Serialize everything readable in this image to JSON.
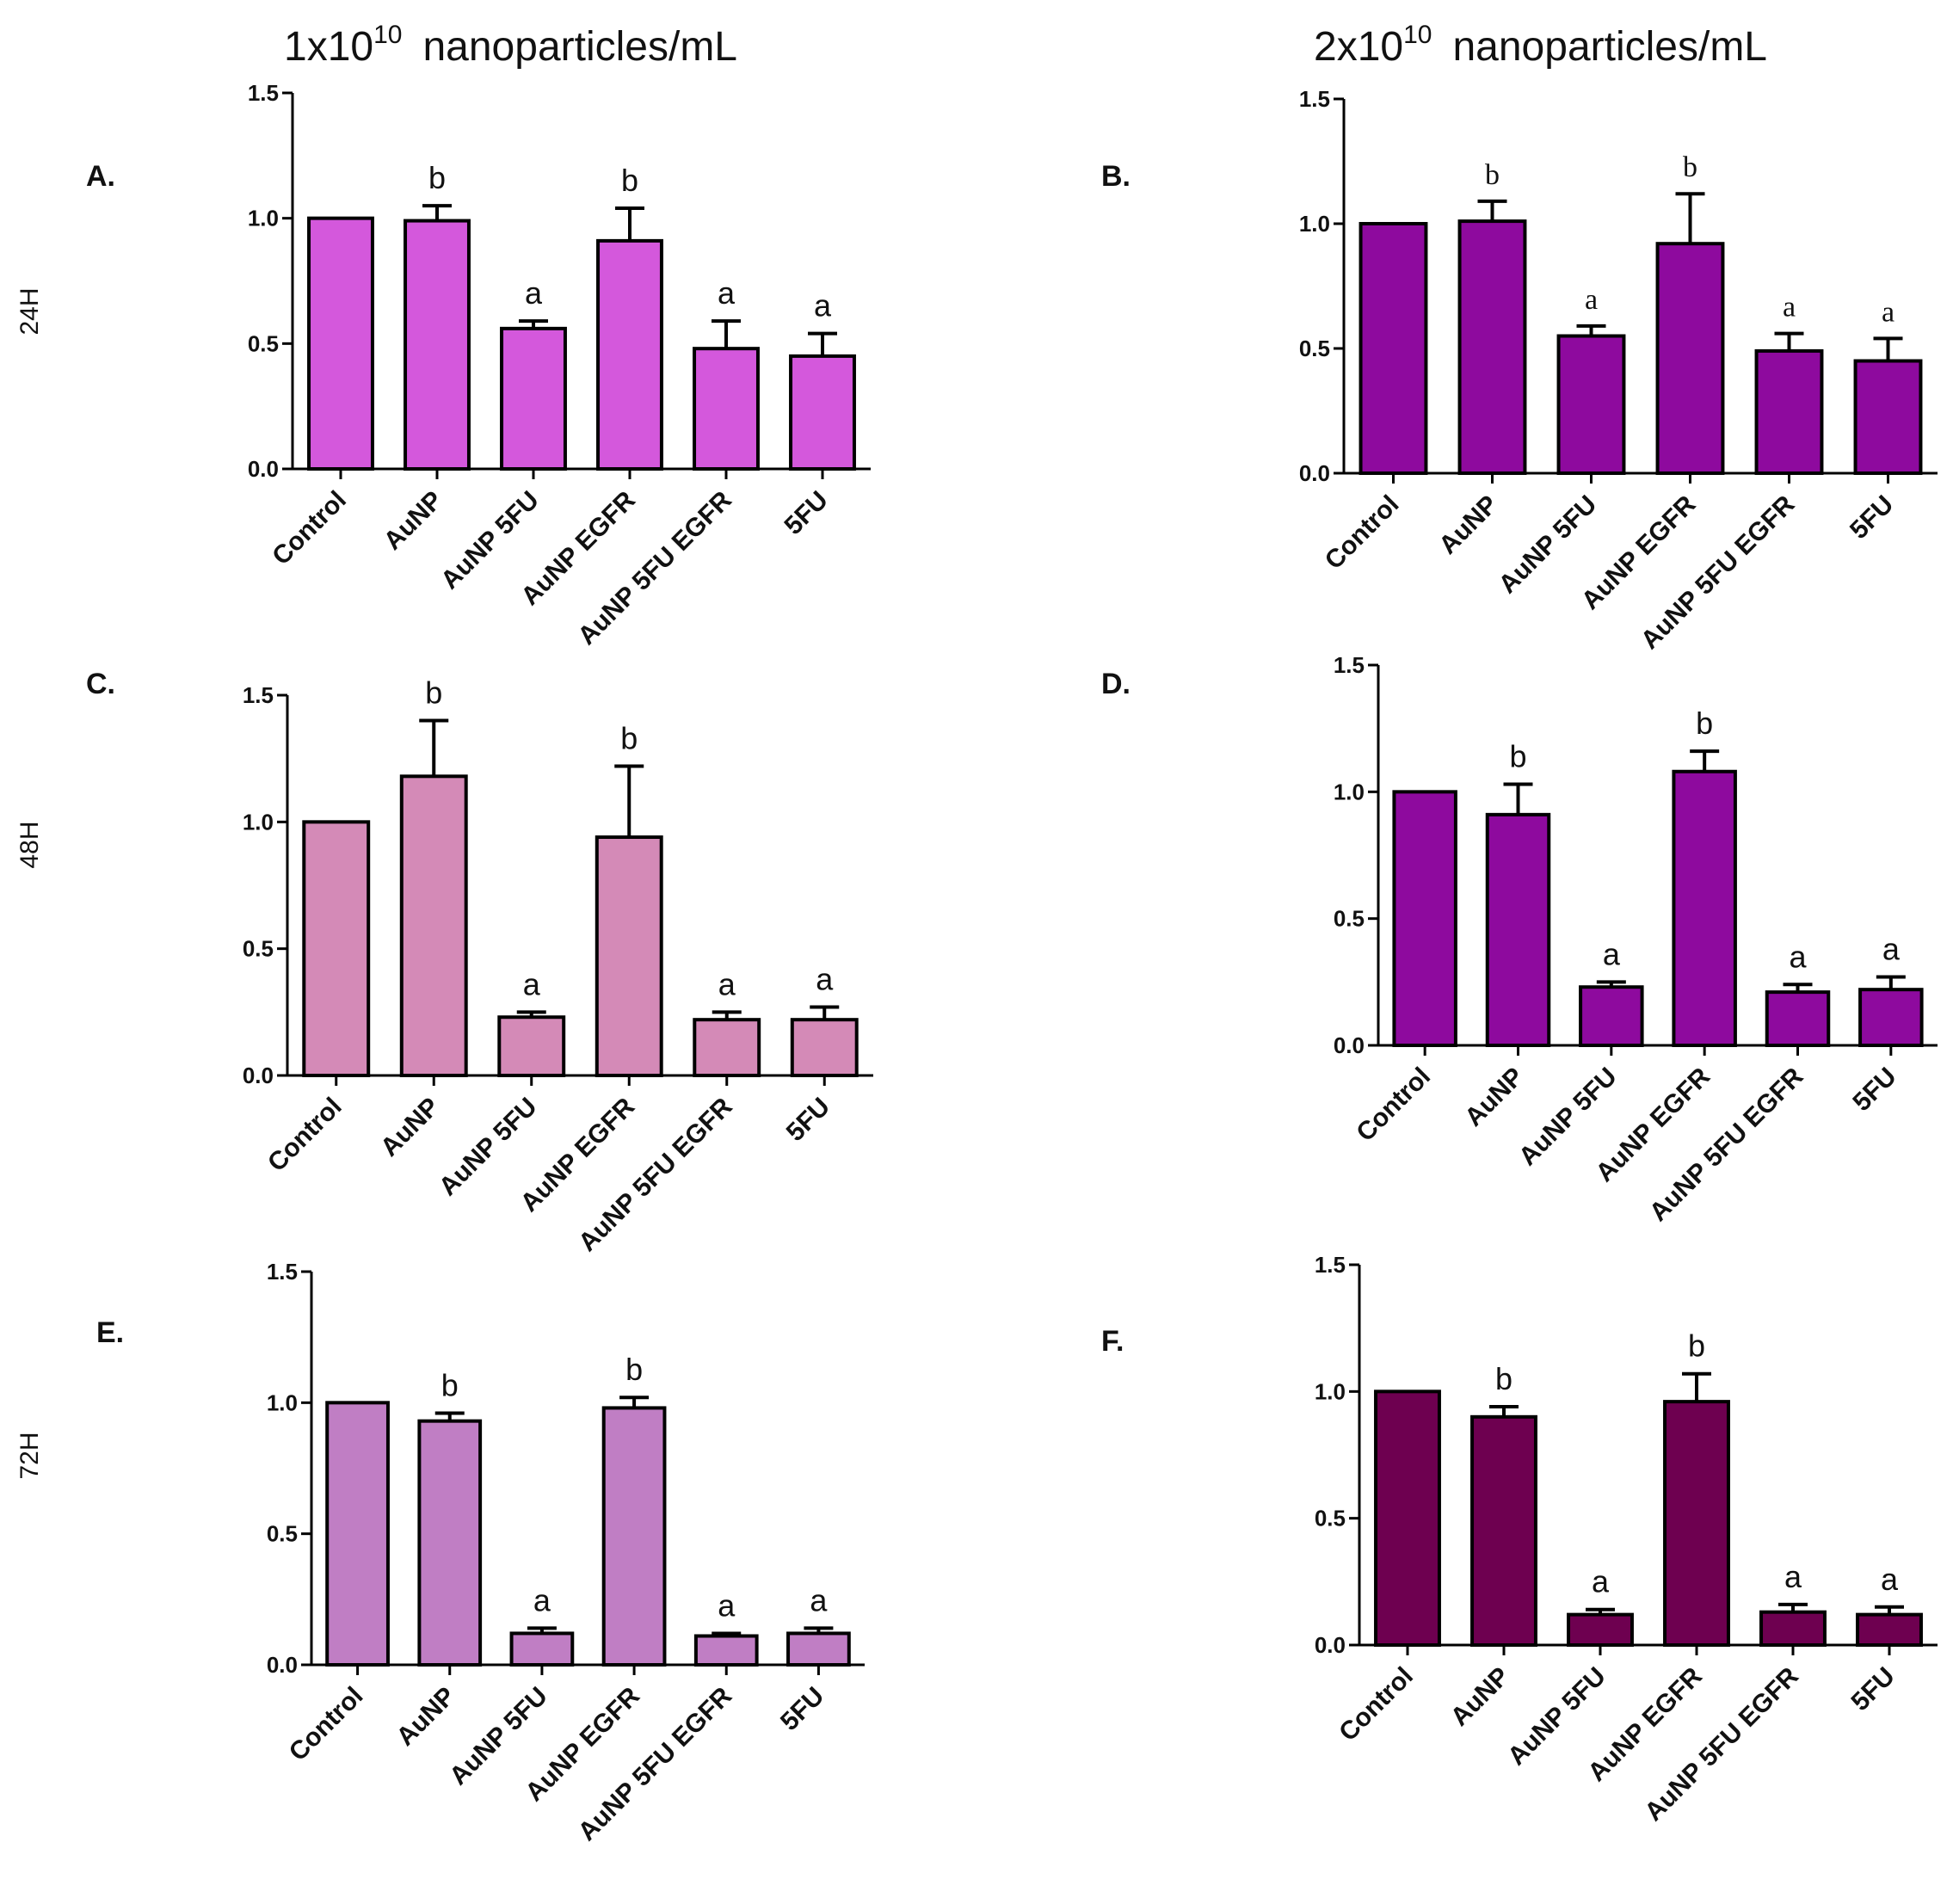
{
  "columns": [
    {
      "base": "1x10",
      "exp": "10",
      "unit": "nanoparticles/mL"
    },
    {
      "base": "2x10",
      "exp": "10",
      "unit": "nanoparticles/mL"
    }
  ],
  "rows": [
    "24H",
    "48H",
    "72H"
  ],
  "chart_data": [
    {
      "id": "A",
      "label": "A.",
      "type": "bar",
      "color": "#D458DC",
      "sig_font": "sans",
      "categories": [
        "Control",
        "AuNP",
        "AuNP 5FU",
        "AuNP EGFR",
        "AuNP 5FU EGFR",
        "5FU"
      ],
      "values": [
        1.0,
        0.99,
        0.56,
        0.91,
        0.48,
        0.45
      ],
      "errors": [
        0.0,
        0.06,
        0.03,
        0.13,
        0.11,
        0.09
      ],
      "significance": [
        "",
        "b",
        "a",
        "b",
        "a",
        "a"
      ],
      "ylim": [
        0,
        1.5
      ],
      "yticks": [
        "0.0",
        "0.5",
        "1.0",
        "1.5"
      ],
      "xlabel": "",
      "ylabel": ""
    },
    {
      "id": "B",
      "label": "B.",
      "type": "bar",
      "color": "#8E0A9E",
      "sig_font": "serif",
      "categories": [
        "Control",
        "AuNP",
        "AuNP 5FU",
        "AuNP EGFR",
        "AuNP 5FU EGFR",
        "5FU"
      ],
      "values": [
        1.0,
        1.01,
        0.55,
        0.92,
        0.49,
        0.45
      ],
      "errors": [
        0.0,
        0.08,
        0.04,
        0.2,
        0.07,
        0.09
      ],
      "significance": [
        "",
        "b",
        "a",
        "b",
        "a",
        "a"
      ],
      "ylim": [
        0,
        1.5
      ],
      "yticks": [
        "0.0",
        "0.5",
        "1.0",
        "1.5"
      ],
      "xlabel": "",
      "ylabel": ""
    },
    {
      "id": "C",
      "label": "C.",
      "type": "bar",
      "color": "#D48AB7",
      "sig_font": "sans",
      "categories": [
        "Control",
        "AuNP",
        "AuNP 5FU",
        "AuNP EGFR",
        "AuNP 5FU EGFR",
        "5FU"
      ],
      "values": [
        1.0,
        1.18,
        0.23,
        0.94,
        0.22,
        0.22
      ],
      "errors": [
        0.0,
        0.22,
        0.02,
        0.28,
        0.03,
        0.05
      ],
      "significance": [
        "",
        "b",
        "a",
        "b",
        "a",
        "a"
      ],
      "ylim": [
        0,
        1.5
      ],
      "yticks": [
        "0.0",
        "0.5",
        "1.0",
        "1.5"
      ],
      "xlabel": "",
      "ylabel": ""
    },
    {
      "id": "D",
      "label": "D.",
      "type": "bar",
      "color": "#8E0A9E",
      "sig_font": "sans",
      "categories": [
        "Control",
        "AuNP",
        "AuNP 5FU",
        "AuNP EGFR",
        "AuNP 5FU EGFR",
        "5FU"
      ],
      "values": [
        1.0,
        0.91,
        0.23,
        1.08,
        0.21,
        0.22
      ],
      "errors": [
        0.0,
        0.12,
        0.02,
        0.08,
        0.03,
        0.05
      ],
      "significance": [
        "",
        "b",
        "a",
        "b",
        "a",
        "a"
      ],
      "ylim": [
        0,
        1.5
      ],
      "yticks": [
        "0.0",
        "0.5",
        "1.0",
        "1.5"
      ],
      "xlabel": "",
      "ylabel": ""
    },
    {
      "id": "E",
      "label": "E.",
      "type": "bar",
      "color": "#C07EC4",
      "sig_font": "sans",
      "categories": [
        "Control",
        "AuNP",
        "AuNP 5FU",
        "AuNP EGFR",
        "AuNP 5FU EGFR",
        "5FU"
      ],
      "values": [
        1.0,
        0.93,
        0.12,
        0.98,
        0.11,
        0.12
      ],
      "errors": [
        0.0,
        0.03,
        0.02,
        0.04,
        0.01,
        0.02
      ],
      "significance": [
        "",
        "b",
        "a",
        "b",
        "a",
        "a"
      ],
      "ylim": [
        0,
        1.5
      ],
      "yticks": [
        "0.0",
        "0.5",
        "1.0",
        "1.5"
      ],
      "xlabel": "",
      "ylabel": ""
    },
    {
      "id": "F",
      "label": "F.",
      "type": "bar",
      "color": "#6E0050",
      "sig_font": "sans",
      "categories": [
        "Control",
        "AuNP",
        "AuNP 5FU",
        "AuNP EGFR",
        "AuNP 5FU EGFR",
        "5FU"
      ],
      "values": [
        1.0,
        0.9,
        0.12,
        0.96,
        0.13,
        0.12
      ],
      "errors": [
        0.0,
        0.04,
        0.02,
        0.11,
        0.03,
        0.03
      ],
      "significance": [
        "",
        "b",
        "a",
        "b",
        "a",
        "a"
      ],
      "ylim": [
        0,
        1.5
      ],
      "yticks": [
        "0.0",
        "0.5",
        "1.0",
        "1.5"
      ],
      "xlabel": "",
      "ylabel": ""
    }
  ]
}
